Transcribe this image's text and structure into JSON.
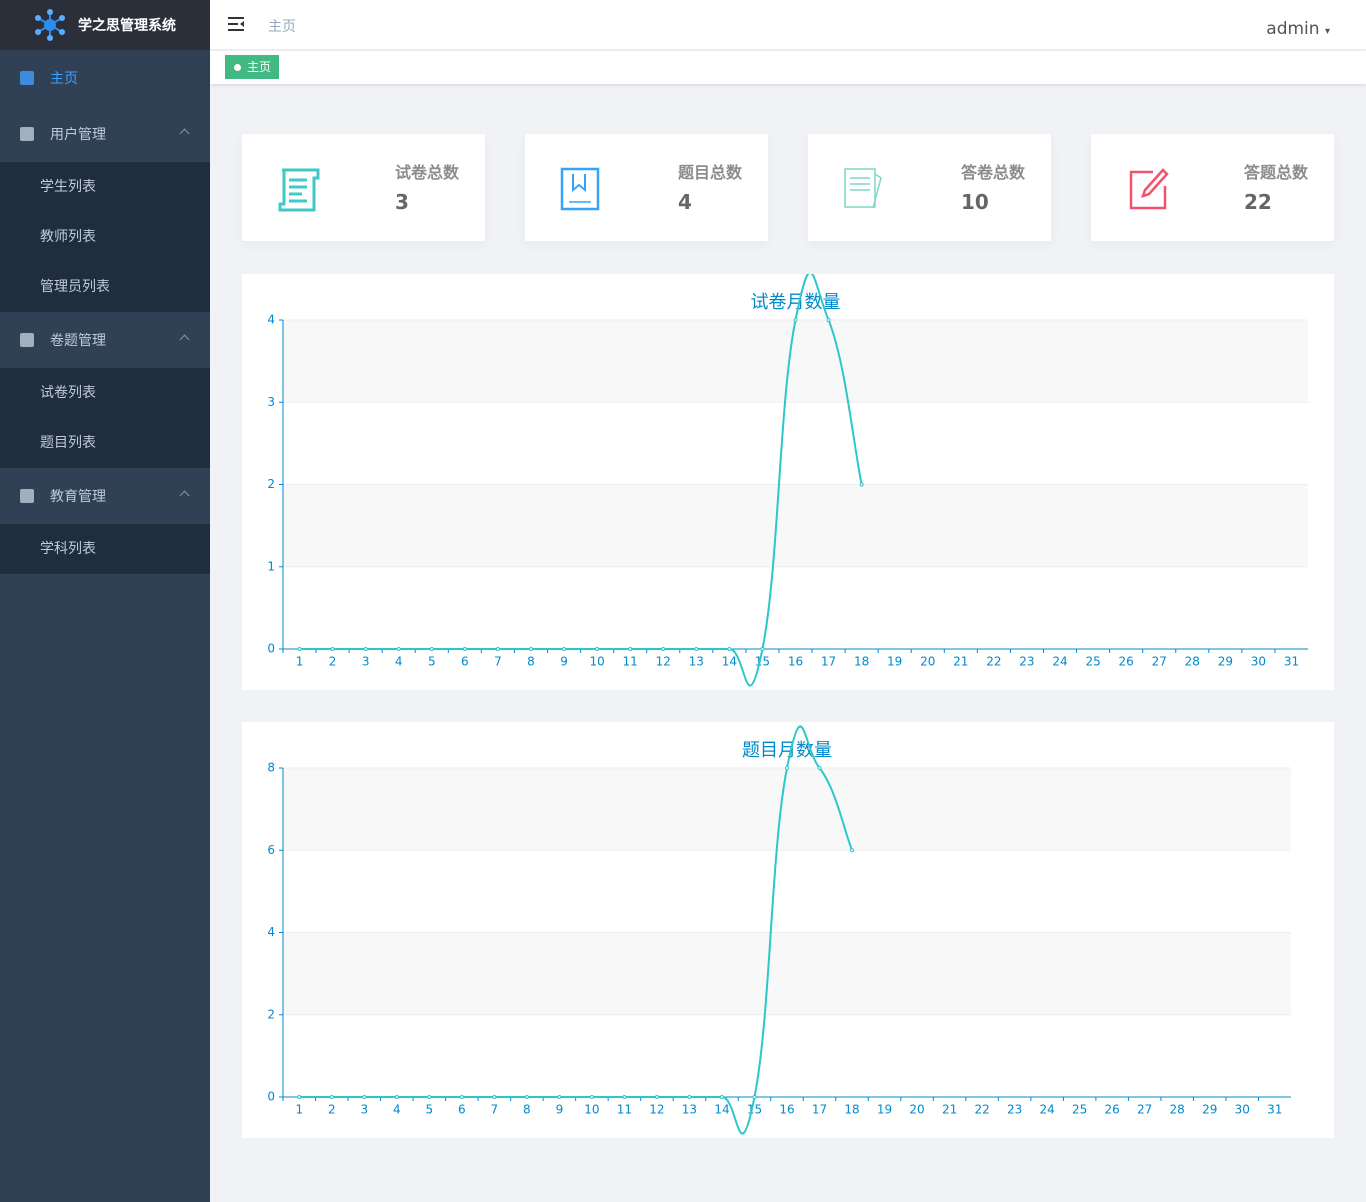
{
  "sidebar": {
    "title": "学之思管理系统",
    "menu": [
      {
        "label": "主页"
      },
      {
        "label": "用户管理",
        "children": [
          "学生列表",
          "教师列表",
          "管理员列表"
        ]
      },
      {
        "label": "卷题管理",
        "children": [
          "试卷列表",
          "题目列表"
        ]
      },
      {
        "label": "教育管理",
        "children": [
          "学科列表"
        ]
      }
    ]
  },
  "header": {
    "breadcrumb": "主页",
    "user": "admin",
    "tag": "主页"
  },
  "cards": [
    {
      "label": "试卷总数",
      "value": 3
    },
    {
      "label": "题目总数",
      "value": 4
    },
    {
      "label": "答卷总数",
      "value": 10
    },
    {
      "label": "答题总数",
      "value": 22
    }
  ],
  "chart_data": [
    {
      "type": "line",
      "title": "试卷月数量",
      "color": "#2ec7c9",
      "categories": [
        "1",
        "2",
        "3",
        "4",
        "5",
        "6",
        "7",
        "8",
        "9",
        "10",
        "11",
        "12",
        "13",
        "14",
        "15",
        "16",
        "17",
        "18",
        "19",
        "20",
        "21",
        "22",
        "23",
        "24",
        "25",
        "26",
        "27",
        "28",
        "29",
        "30",
        "31"
      ],
      "values": [
        0,
        0,
        0,
        0,
        0,
        0,
        0,
        0,
        0,
        0,
        0,
        0,
        0,
        0,
        0,
        4,
        4,
        2,
        null,
        null,
        null,
        null,
        null,
        null,
        null,
        null,
        null,
        null,
        null,
        null,
        null
      ],
      "ylim": [
        0,
        4
      ],
      "yticks": [
        0,
        1,
        2,
        3,
        4
      ]
    },
    {
      "type": "line",
      "title": "题目月数量",
      "color": "#2ec7c9",
      "categories": [
        "1",
        "2",
        "3",
        "4",
        "5",
        "6",
        "7",
        "8",
        "9",
        "10",
        "11",
        "12",
        "13",
        "14",
        "15",
        "16",
        "17",
        "18",
        "19",
        "20",
        "21",
        "22",
        "23",
        "24",
        "25",
        "26",
        "27",
        "28",
        "29",
        "30",
        "31"
      ],
      "values": [
        0,
        0,
        0,
        0,
        0,
        0,
        0,
        0,
        0,
        0,
        0,
        0,
        0,
        0,
        0,
        8,
        8,
        6,
        null,
        null,
        null,
        null,
        null,
        null,
        null,
        null,
        null,
        null,
        null,
        null,
        null
      ],
      "ylim": [
        0,
        8
      ],
      "yticks": [
        0,
        2,
        4,
        6,
        8
      ]
    }
  ]
}
